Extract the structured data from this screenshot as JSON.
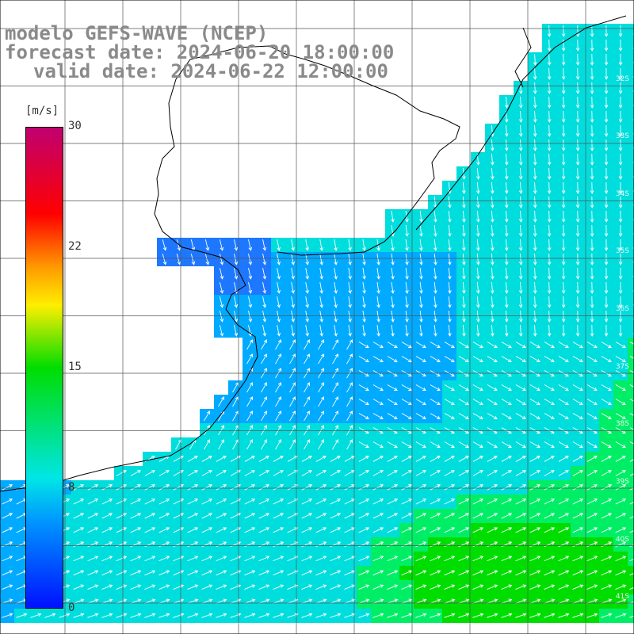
{
  "title": {
    "line1": "modelo GEFS-WAVE (NCEP)",
    "line2": "forecast date: 2024-06-20 18:00:00",
    "line3": "valid date: 2024-06-22 12:00:00"
  },
  "colorbar": {
    "unit": "[m/s]",
    "ticks": [
      "30",
      "22",
      "15",
      "8",
      "0"
    ],
    "colors": [
      "#0010ff",
      "#0096ff",
      "#00e6e6",
      "#00dd00",
      "#ffee00",
      "#ff9900",
      "#ff0000",
      "#c00070"
    ]
  },
  "lat_labels": [
    "32S",
    "33S",
    "34S",
    "35S",
    "36S",
    "37S",
    "38S",
    "39S",
    "40S",
    "41S"
  ],
  "colors": {
    "land": "#ffffff",
    "coast": "#000000",
    "grid": "#555555",
    "arrow": "#ffffff"
  }
}
